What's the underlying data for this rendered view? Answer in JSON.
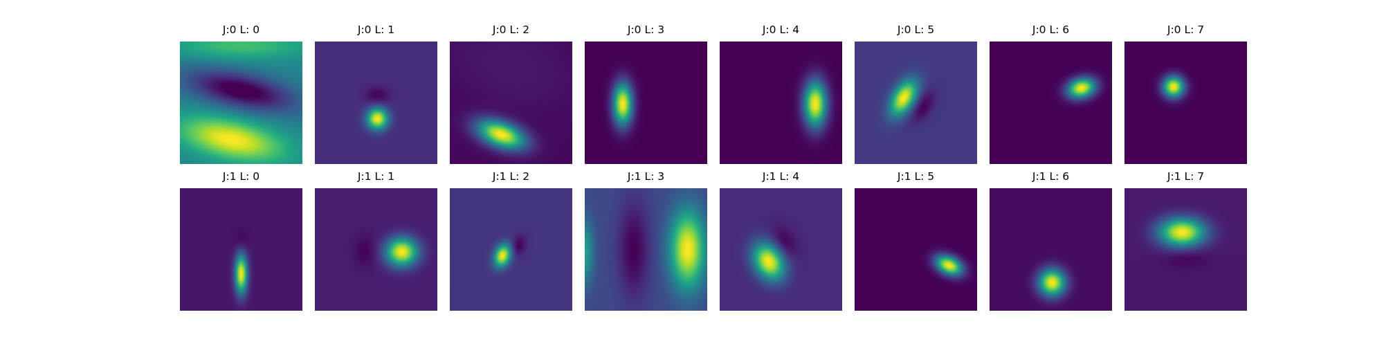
{
  "chart_data": {
    "type": "heatmap",
    "colormap": "viridis",
    "axes": "off",
    "value_range": [
      0,
      1
    ],
    "grid": {
      "rows": 2,
      "cols": 8
    },
    "panels": [
      {
        "title": "J:0 L: 0",
        "background": 0.45,
        "blobs": [
          {
            "cx": 0.42,
            "cy": 0.8,
            "sx": 0.3,
            "sy": 0.11,
            "angle": 12,
            "amp": 0.55
          },
          {
            "cx": 0.5,
            "cy": 0.4,
            "sx": 0.32,
            "sy": 0.1,
            "angle": 12,
            "amp": -0.5
          },
          {
            "cx": 0.5,
            "cy": 0.03,
            "sx": 0.4,
            "sy": 0.08,
            "angle": 0,
            "amp": 0.25
          }
        ]
      },
      {
        "title": "J:0 L: 1",
        "background": 0.13,
        "blobs": [
          {
            "cx": 0.51,
            "cy": 0.63,
            "sx": 0.06,
            "sy": 0.06,
            "angle": 0,
            "amp": 0.87
          },
          {
            "cx": 0.51,
            "cy": 0.44,
            "sx": 0.07,
            "sy": 0.05,
            "angle": 0,
            "amp": -0.12
          }
        ]
      },
      {
        "title": "J:0 L: 2",
        "background": 0.02,
        "blobs": [
          {
            "cx": 0.42,
            "cy": 0.76,
            "sx": 0.14,
            "sy": 0.07,
            "angle": 20,
            "amp": 0.98
          },
          {
            "cx": 0.5,
            "cy": 0.2,
            "sx": 0.4,
            "sy": 0.25,
            "angle": 20,
            "amp": 0.05
          }
        ]
      },
      {
        "title": "J:0 L: 3",
        "background": 0.0,
        "blobs": [
          {
            "cx": 0.31,
            "cy": 0.51,
            "sx": 0.055,
            "sy": 0.12,
            "angle": 0,
            "amp": 1.0
          }
        ]
      },
      {
        "title": "J:0 L: 4",
        "background": 0.0,
        "blobs": [
          {
            "cx": 0.78,
            "cy": 0.51,
            "sx": 0.065,
            "sy": 0.13,
            "angle": 0,
            "amp": 1.0
          }
        ]
      },
      {
        "title": "J:0 L: 5",
        "background": 0.17,
        "blobs": [
          {
            "cx": 0.4,
            "cy": 0.46,
            "sx": 0.06,
            "sy": 0.11,
            "angle": 30,
            "amp": 0.83
          },
          {
            "cx": 0.56,
            "cy": 0.53,
            "sx": 0.05,
            "sy": 0.1,
            "angle": 30,
            "amp": -0.17
          }
        ]
      },
      {
        "title": "J:0 L: 6",
        "background": 0.0,
        "blobs": [
          {
            "cx": 0.75,
            "cy": 0.38,
            "sx": 0.08,
            "sy": 0.055,
            "angle": -15,
            "amp": 1.0
          }
        ]
      },
      {
        "title": "J:0 L: 7",
        "background": 0.0,
        "blobs": [
          {
            "cx": 0.4,
            "cy": 0.37,
            "sx": 0.06,
            "sy": 0.06,
            "angle": 0,
            "amp": 1.0
          }
        ]
      },
      {
        "title": "J:1 L: 0",
        "background": 0.06,
        "blobs": [
          {
            "cx": 0.5,
            "cy": 0.7,
            "sx": 0.035,
            "sy": 0.11,
            "angle": 0,
            "amp": 0.94
          },
          {
            "cx": 0.5,
            "cy": 0.43,
            "sx": 0.04,
            "sy": 0.06,
            "angle": 0,
            "amp": -0.06
          }
        ]
      },
      {
        "title": "J:1 L: 1",
        "background": 0.08,
        "blobs": [
          {
            "cx": 0.71,
            "cy": 0.52,
            "sx": 0.09,
            "sy": 0.08,
            "angle": 0,
            "amp": 0.92
          },
          {
            "cx": 0.41,
            "cy": 0.51,
            "sx": 0.06,
            "sy": 0.08,
            "angle": 0,
            "amp": -0.08
          }
        ]
      },
      {
        "title": "J:1 L: 2",
        "background": 0.15,
        "blobs": [
          {
            "cx": 0.43,
            "cy": 0.55,
            "sx": 0.045,
            "sy": 0.065,
            "angle": 20,
            "amp": 0.85
          },
          {
            "cx": 0.56,
            "cy": 0.47,
            "sx": 0.04,
            "sy": 0.06,
            "angle": 20,
            "amp": -0.15
          }
        ]
      },
      {
        "title": "J:1 L: 3",
        "background": 0.22,
        "blobs": [
          {
            "cx": 0.84,
            "cy": 0.5,
            "sx": 0.1,
            "sy": 0.22,
            "angle": 0,
            "amp": 0.78
          },
          {
            "cx": 0.4,
            "cy": 0.5,
            "sx": 0.09,
            "sy": 0.28,
            "angle": 0,
            "amp": -0.22
          },
          {
            "cx": 0.0,
            "cy": 0.52,
            "sx": 0.05,
            "sy": 0.18,
            "angle": 0,
            "amp": 0.35
          }
        ]
      },
      {
        "title": "J:1 L: 4",
        "background": 0.12,
        "blobs": [
          {
            "cx": 0.4,
            "cy": 0.6,
            "sx": 0.08,
            "sy": 0.11,
            "angle": -30,
            "amp": 0.88
          },
          {
            "cx": 0.53,
            "cy": 0.44,
            "sx": 0.06,
            "sy": 0.09,
            "angle": -30,
            "amp": -0.12
          }
        ]
      },
      {
        "title": "J:1 L: 5",
        "background": 0.0,
        "blobs": [
          {
            "cx": 0.77,
            "cy": 0.63,
            "sx": 0.08,
            "sy": 0.05,
            "angle": 25,
            "amp": 1.0
          }
        ]
      },
      {
        "title": "J:1 L: 6",
        "background": 0.03,
        "blobs": [
          {
            "cx": 0.51,
            "cy": 0.77,
            "sx": 0.075,
            "sy": 0.075,
            "angle": 0,
            "amp": 0.97
          }
        ]
      },
      {
        "title": "J:1 L: 7",
        "background": 0.07,
        "blobs": [
          {
            "cx": 0.47,
            "cy": 0.36,
            "sx": 0.13,
            "sy": 0.08,
            "angle": 0,
            "amp": 0.93
          },
          {
            "cx": 0.5,
            "cy": 0.57,
            "sx": 0.12,
            "sy": 0.06,
            "angle": 0,
            "amp": -0.07
          }
        ]
      }
    ]
  }
}
